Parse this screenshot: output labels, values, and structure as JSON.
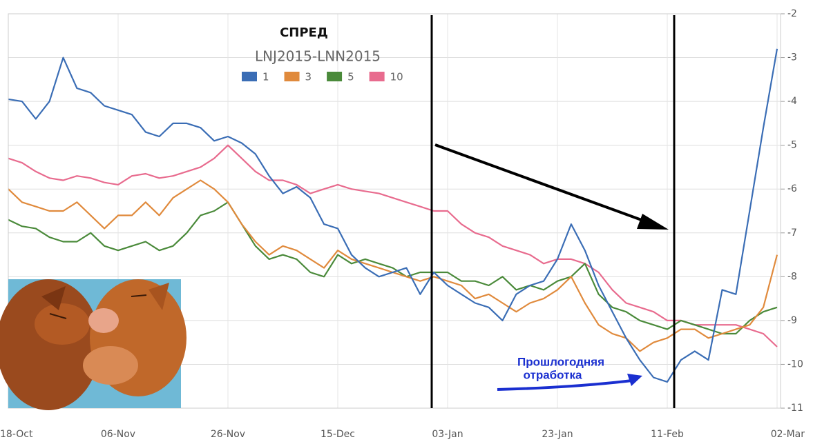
{
  "chart_data": {
    "type": "line",
    "title": "СПРЕД",
    "subtitle": "LNJ2015-LNN2015",
    "annotation": [
      "Прошлогодняя",
      "отработка"
    ],
    "categories": [
      "18-Oct",
      null,
      null,
      null,
      null,
      null,
      null,
      null,
      "06-Nov",
      null,
      null,
      null,
      null,
      null,
      null,
      null,
      "26-Nov",
      null,
      null,
      null,
      null,
      null,
      null,
      null,
      "15-Dec",
      null,
      null,
      null,
      null,
      null,
      null,
      null,
      "03-Jan",
      null,
      null,
      null,
      null,
      null,
      null,
      null,
      "23-Jan",
      null,
      null,
      null,
      null,
      null,
      null,
      null,
      "11-Feb",
      null,
      null,
      null,
      null,
      null,
      null,
      null,
      "02-Mar"
    ],
    "series": [
      {
        "name": "1",
        "color": "#3a6db5",
        "values": [
          -3.95,
          -4.0,
          -4.4,
          -4.0,
          -3.0,
          -3.7,
          -3.8,
          -4.1,
          -4.2,
          -4.3,
          -4.7,
          -4.8,
          -4.5,
          -4.5,
          -4.6,
          -4.9,
          -4.8,
          -4.95,
          -5.2,
          -5.7,
          -6.1,
          -5.95,
          -6.2,
          -6.8,
          -6.9,
          -7.5,
          -7.8,
          -8.0,
          -7.9,
          -7.8,
          -8.4,
          -7.9,
          -8.2,
          -8.4,
          -8.6,
          -8.7,
          -9.0,
          -8.4,
          -8.2,
          -8.1,
          -7.6,
          -6.8,
          -7.4,
          -8.2,
          -8.8,
          -9.4,
          -9.9,
          -10.3,
          -10.4,
          -9.9,
          -9.7,
          -9.9,
          -8.3,
          -8.4,
          -6.5,
          -4.6,
          -2.8
        ]
      },
      {
        "name": "3",
        "color": "#e08a3c",
        "values": [
          -6.0,
          -6.3,
          -6.4,
          -6.5,
          -6.5,
          -6.3,
          -6.6,
          -6.9,
          -6.6,
          -6.6,
          -6.3,
          -6.6,
          -6.2,
          -6.0,
          -5.8,
          -6.0,
          -6.3,
          -6.8,
          -7.2,
          -7.5,
          -7.3,
          -7.4,
          -7.6,
          -7.8,
          -7.4,
          -7.6,
          -7.7,
          -7.8,
          -7.9,
          -8.0,
          -8.1,
          -8.0,
          -8.1,
          -8.2,
          -8.5,
          -8.4,
          -8.6,
          -8.8,
          -8.6,
          -8.5,
          -8.3,
          -8.0,
          -8.6,
          -9.1,
          -9.3,
          -9.4,
          -9.7,
          -9.5,
          -9.4,
          -9.2,
          -9.2,
          -9.4,
          -9.3,
          -9.2,
          -9.1,
          -8.7,
          -7.5
        ]
      },
      {
        "name": "5",
        "color": "#4a8a3a",
        "values": [
          -6.7,
          -6.85,
          -6.9,
          -7.1,
          -7.2,
          -7.2,
          -7.0,
          -7.3,
          -7.4,
          -7.3,
          -7.2,
          -7.4,
          -7.3,
          -7.0,
          -6.6,
          -6.5,
          -6.3,
          -6.8,
          -7.3,
          -7.6,
          -7.5,
          -7.6,
          -7.9,
          -8.0,
          -7.5,
          -7.7,
          -7.6,
          -7.7,
          -7.8,
          -8.0,
          -7.9,
          -7.9,
          -7.9,
          -8.1,
          -8.1,
          -8.2,
          -8.0,
          -8.3,
          -8.2,
          -8.3,
          -8.1,
          -8.0,
          -7.7,
          -8.4,
          -8.7,
          -8.8,
          -9.0,
          -9.1,
          -9.2,
          -9.0,
          -9.1,
          -9.2,
          -9.3,
          -9.3,
          -9.0,
          -8.8,
          -8.7
        ]
      },
      {
        "name": "10",
        "color": "#e86b8e",
        "values": [
          -5.3,
          -5.4,
          -5.6,
          -5.75,
          -5.8,
          -5.7,
          -5.75,
          -5.85,
          -5.9,
          -5.7,
          -5.65,
          -5.75,
          -5.7,
          -5.6,
          -5.5,
          -5.3,
          -5.0,
          -5.3,
          -5.6,
          -5.8,
          -5.8,
          -5.9,
          -6.1,
          -6.0,
          -5.9,
          -6.0,
          -6.05,
          -6.1,
          -6.2,
          -6.3,
          -6.4,
          -6.5,
          -6.5,
          -6.8,
          -7.0,
          -7.1,
          -7.3,
          -7.4,
          -7.5,
          -7.7,
          -7.6,
          -7.6,
          -7.7,
          -7.9,
          -8.3,
          -8.6,
          -8.7,
          -8.8,
          -9.0,
          -9.0,
          -9.1,
          -9.1,
          -9.1,
          -9.1,
          -9.2,
          -9.3,
          -9.6
        ]
      }
    ],
    "ylim": [
      -11,
      -2
    ],
    "yticks": [
      -11,
      -10,
      -9,
      -8,
      -7,
      -6,
      -5,
      -4,
      -3,
      -2
    ],
    "y_axis_side": "right",
    "grid": true,
    "legend": "top"
  }
}
